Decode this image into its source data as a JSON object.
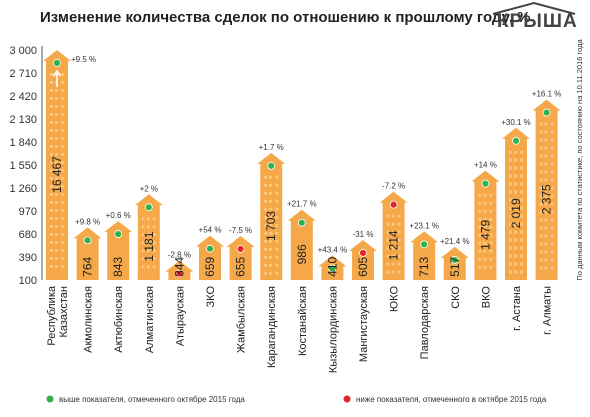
{
  "brand": {
    "logo": "КРЫША"
  },
  "chart_data": {
    "type": "bar",
    "title": "Изменение количества сделок по отношению к прошлому году, %",
    "yticks": [
      "3 000",
      "2 710",
      "2 420",
      "2 130",
      "1 840",
      "1 550",
      "1 260",
      "970",
      "680",
      "390",
      "100"
    ],
    "ylim": [
      100,
      3000
    ],
    "grid": false,
    "side_note": "По данным комитета по статистике, по состоянию на 10.11.2016 года",
    "categories": [
      "Республика Казахстан",
      "Акмолинская",
      "Актюбинская",
      "Алматинская",
      "Атырауская",
      "ЗКО",
      "Жамбылская",
      "Карагандинская",
      "Костанайская",
      "Кызылординская",
      "Мангистауская",
      "ЮКО",
      "Павлодарская",
      "СКО",
      "ВКО",
      "г. Астана",
      "г. Алматы"
    ],
    "category_lines": [
      [
        "Республика",
        "Казахстан"
      ],
      [
        "Акмолинская"
      ],
      [
        "Актюбинская"
      ],
      [
        "Алматинская"
      ],
      [
        "Атырауская"
      ],
      [
        "ЗКО"
      ],
      [
        "Жамбылская"
      ],
      [
        "Карагандинская"
      ],
      [
        "Костанайская"
      ],
      [
        "Кызылординская"
      ],
      [
        "Мангистауская"
      ],
      [
        "ЮКО"
      ],
      [
        "Павлодарская"
      ],
      [
        "СКО"
      ],
      [
        "ВКО"
      ],
      [
        "г. Астана"
      ],
      [
        "г. Алматы"
      ]
    ],
    "values": [
      16467,
      764,
      843,
      1181,
      344,
      659,
      655,
      1703,
      986,
      410,
      605,
      1214,
      713,
      517,
      1479,
      2019,
      2375
    ],
    "value_labels": [
      "16 467",
      "764",
      "843",
      "1 181",
      "344",
      "659",
      "655",
      "1 703",
      "986",
      "410",
      "605",
      "1 214",
      "713",
      "517",
      "1 479",
      "2 019",
      "2 375"
    ],
    "change_labels": [
      "+9.5 %",
      "+9.8 %",
      "+0.6 %",
      "+2 %",
      "-2.8 %",
      "+54 %",
      "-7.5 %",
      "+1.7 %",
      "+21.7 %",
      "+43.4 %",
      "-31 %",
      "-7.2 %",
      "+23.1 %",
      "+21.4 %",
      "+14 %",
      "+30.1 %",
      "+16.1 %"
    ],
    "status": [
      "above",
      "above",
      "above",
      "above",
      "below",
      "above",
      "below",
      "above",
      "above",
      "above",
      "below",
      "below",
      "above",
      "above",
      "above",
      "above",
      "above"
    ],
    "capped": [
      true,
      false,
      false,
      false,
      false,
      false,
      false,
      false,
      false,
      false,
      false,
      false,
      false,
      false,
      false,
      false,
      false
    ],
    "legend": [
      {
        "label": "выше показателя, отмеченного октябре 2015 года",
        "color": "#2db34a"
      },
      {
        "label": "ниже показателя, отмеченного в октябре 2015 года",
        "color": "#e32526"
      }
    ],
    "colors": {
      "bar": "#f5a849",
      "window": "#fbc67c",
      "above": "#2db34a",
      "below": "#e32526",
      "axis": "#555555"
    }
  }
}
